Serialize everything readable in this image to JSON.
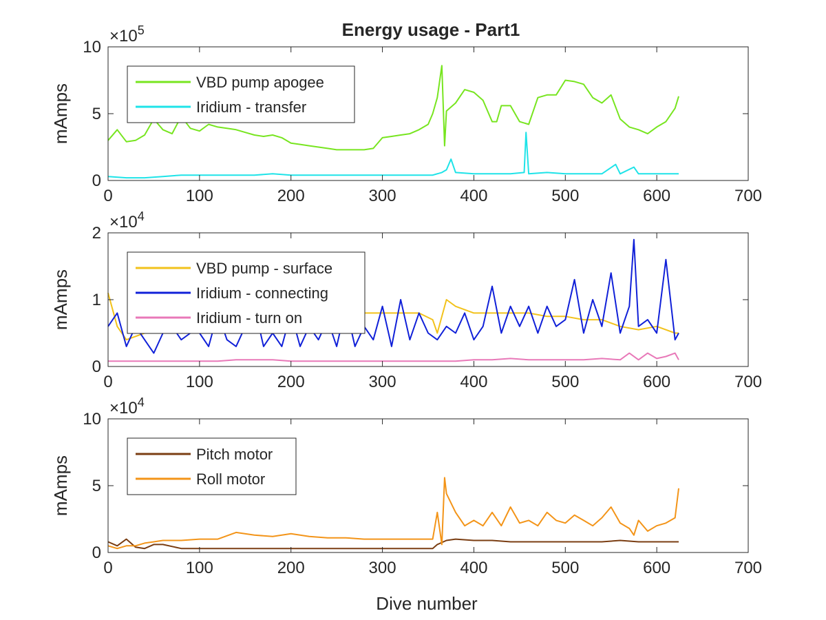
{
  "title": "Energy usage - Part1",
  "xlabel": "Dive number",
  "chart_data": [
    {
      "type": "line",
      "ylabel": "mAmps",
      "exponent_label": "×10^5",
      "exponent_base": "×10",
      "exponent_power": "5",
      "xlim": [
        0,
        700
      ],
      "ylim": [
        0,
        10
      ],
      "xticks": [
        "0",
        "100",
        "200",
        "300",
        "400",
        "500",
        "600",
        "700"
      ],
      "yticks": [
        "0",
        "5",
        "10"
      ],
      "legend_position": "top-left",
      "series": [
        {
          "name": "VBD pump apogee",
          "color": "#77e51f",
          "x": [
            0,
            10,
            20,
            30,
            40,
            50,
            60,
            70,
            80,
            90,
            100,
            110,
            120,
            130,
            140,
            150,
            160,
            170,
            180,
            190,
            200,
            210,
            220,
            230,
            240,
            250,
            260,
            270,
            280,
            290,
            300,
            310,
            320,
            330,
            340,
            350,
            355,
            360,
            365,
            368,
            370,
            380,
            390,
            400,
            410,
            420,
            425,
            430,
            440,
            450,
            460,
            470,
            480,
            490,
            500,
            510,
            520,
            530,
            540,
            550,
            560,
            570,
            580,
            590,
            600,
            610,
            620,
            624
          ],
          "y": [
            3.0,
            3.8,
            2.9,
            3.0,
            3.4,
            4.6,
            3.8,
            3.5,
            4.8,
            3.9,
            3.7,
            4.2,
            4.0,
            3.9,
            3.8,
            3.6,
            3.4,
            3.3,
            3.4,
            3.2,
            2.8,
            2.7,
            2.6,
            2.5,
            2.4,
            2.3,
            2.3,
            2.3,
            2.3,
            2.4,
            3.2,
            3.3,
            3.4,
            3.5,
            3.8,
            4.2,
            5.0,
            6.2,
            8.6,
            2.6,
            5.2,
            5.8,
            6.8,
            6.6,
            6.0,
            4.4,
            4.4,
            5.6,
            5.6,
            4.4,
            4.2,
            6.2,
            6.4,
            6.4,
            7.5,
            7.4,
            7.2,
            6.2,
            5.8,
            6.4,
            4.6,
            4.0,
            3.8,
            3.5,
            4.0,
            4.4,
            5.4,
            6.3
          ]
        },
        {
          "name": "Iridium - transfer",
          "color": "#1ee3e8",
          "x": [
            0,
            20,
            40,
            60,
            80,
            100,
            120,
            140,
            160,
            180,
            200,
            220,
            240,
            260,
            280,
            300,
            320,
            340,
            355,
            365,
            370,
            375,
            380,
            400,
            420,
            440,
            455,
            457,
            460,
            480,
            500,
            520,
            540,
            555,
            560,
            575,
            580,
            600,
            620,
            624
          ],
          "y": [
            0.3,
            0.2,
            0.2,
            0.3,
            0.4,
            0.4,
            0.4,
            0.4,
            0.4,
            0.5,
            0.4,
            0.4,
            0.4,
            0.4,
            0.4,
            0.4,
            0.4,
            0.4,
            0.4,
            0.6,
            0.8,
            1.6,
            0.6,
            0.5,
            0.5,
            0.5,
            0.6,
            3.6,
            0.5,
            0.6,
            0.5,
            0.5,
            0.5,
            1.2,
            0.5,
            1.0,
            0.5,
            0.5,
            0.5,
            0.5
          ]
        }
      ]
    },
    {
      "type": "line",
      "ylabel": "mAmps",
      "exponent_label": "×10^4",
      "exponent_base": "×10",
      "exponent_power": "4",
      "xlim": [
        0,
        700
      ],
      "ylim": [
        0,
        2
      ],
      "xticks": [
        "0",
        "100",
        "200",
        "300",
        "400",
        "500",
        "600",
        "700"
      ],
      "yticks": [
        "0",
        "1",
        "2"
      ],
      "legend_position": "top-left",
      "series": [
        {
          "name": "VBD pump - surface",
          "color": "#f2c21b",
          "x": [
            0,
            10,
            20,
            40,
            60,
            80,
            100,
            120,
            140,
            160,
            180,
            200,
            220,
            240,
            260,
            280,
            300,
            320,
            340,
            355,
            360,
            370,
            380,
            400,
            420,
            440,
            460,
            480,
            500,
            520,
            540,
            560,
            580,
            600,
            620,
            624
          ],
          "y": [
            1.1,
            0.6,
            0.4,
            0.5,
            0.6,
            0.6,
            0.7,
            0.7,
            0.8,
            0.8,
            0.8,
            0.8,
            0.8,
            0.8,
            0.8,
            0.8,
            0.8,
            0.8,
            0.8,
            0.7,
            0.5,
            1.0,
            0.9,
            0.8,
            0.8,
            0.8,
            0.8,
            0.75,
            0.75,
            0.7,
            0.7,
            0.6,
            0.55,
            0.6,
            0.5,
            0.5
          ]
        },
        {
          "name": "Iridium - connecting",
          "color": "#1020d8",
          "x": [
            0,
            10,
            20,
            30,
            40,
            50,
            60,
            70,
            80,
            90,
            100,
            110,
            120,
            130,
            140,
            150,
            160,
            170,
            180,
            190,
            200,
            210,
            220,
            230,
            240,
            250,
            260,
            270,
            280,
            290,
            300,
            310,
            320,
            330,
            340,
            350,
            360,
            370,
            380,
            390,
            400,
            410,
            420,
            430,
            440,
            450,
            460,
            470,
            480,
            490,
            500,
            510,
            520,
            530,
            540,
            550,
            560,
            570,
            575,
            580,
            590,
            600,
            610,
            620,
            624
          ],
          "y": [
            0.6,
            0.8,
            0.3,
            0.6,
            0.4,
            0.2,
            0.5,
            0.6,
            0.4,
            0.5,
            0.5,
            0.3,
            0.8,
            0.4,
            0.3,
            0.6,
            0.9,
            0.3,
            0.5,
            0.3,
            0.8,
            0.3,
            0.6,
            0.4,
            0.7,
            0.3,
            0.9,
            0.3,
            0.6,
            0.4,
            0.9,
            0.3,
            1.0,
            0.4,
            0.8,
            0.5,
            0.4,
            0.6,
            0.5,
            0.8,
            0.4,
            0.6,
            1.2,
            0.5,
            0.9,
            0.6,
            0.9,
            0.5,
            0.9,
            0.6,
            0.7,
            1.3,
            0.5,
            1.0,
            0.6,
            1.4,
            0.5,
            0.9,
            1.9,
            0.6,
            0.7,
            0.5,
            1.6,
            0.4,
            0.5
          ]
        },
        {
          "name": "Iridium - turn on",
          "color": "#e878b8",
          "x": [
            0,
            20,
            40,
            60,
            80,
            100,
            120,
            140,
            160,
            180,
            200,
            220,
            240,
            260,
            280,
            300,
            320,
            340,
            355,
            365,
            380,
            400,
            420,
            440,
            460,
            480,
            500,
            520,
            540,
            560,
            570,
            580,
            590,
            600,
            610,
            620,
            624
          ],
          "y": [
            0.08,
            0.08,
            0.08,
            0.08,
            0.08,
            0.08,
            0.08,
            0.1,
            0.1,
            0.1,
            0.08,
            0.08,
            0.08,
            0.08,
            0.08,
            0.08,
            0.08,
            0.08,
            0.08,
            0.08,
            0.08,
            0.1,
            0.1,
            0.12,
            0.1,
            0.1,
            0.1,
            0.1,
            0.12,
            0.1,
            0.2,
            0.1,
            0.2,
            0.12,
            0.15,
            0.2,
            0.1
          ]
        }
      ]
    },
    {
      "type": "line",
      "ylabel": "mAmps",
      "exponent_label": "×10^4",
      "exponent_base": "×10",
      "exponent_power": "4",
      "xlim": [
        0,
        700
      ],
      "ylim": [
        0,
        10
      ],
      "xticks": [
        "0",
        "100",
        "200",
        "300",
        "400",
        "500",
        "600",
        "700"
      ],
      "yticks": [
        "0",
        "5",
        "10"
      ],
      "legend_position": "top-left",
      "series": [
        {
          "name": "Pitch motor",
          "color": "#7a3d12",
          "x": [
            0,
            10,
            20,
            30,
            40,
            50,
            60,
            80,
            100,
            120,
            140,
            160,
            180,
            200,
            220,
            240,
            260,
            280,
            300,
            320,
            340,
            355,
            360,
            370,
            380,
            400,
            420,
            440,
            460,
            480,
            500,
            520,
            540,
            560,
            580,
            600,
            620,
            624
          ],
          "y": [
            0.8,
            0.5,
            1.0,
            0.4,
            0.3,
            0.6,
            0.6,
            0.3,
            0.3,
            0.3,
            0.3,
            0.3,
            0.3,
            0.3,
            0.3,
            0.3,
            0.3,
            0.3,
            0.3,
            0.3,
            0.3,
            0.3,
            0.6,
            0.9,
            1.0,
            0.9,
            0.9,
            0.8,
            0.8,
            0.8,
            0.8,
            0.8,
            0.8,
            0.9,
            0.8,
            0.8,
            0.8,
            0.8
          ]
        },
        {
          "name": "Roll motor",
          "color": "#f39418",
          "x": [
            0,
            10,
            20,
            30,
            40,
            50,
            60,
            70,
            80,
            100,
            120,
            140,
            160,
            180,
            200,
            220,
            240,
            260,
            280,
            300,
            320,
            340,
            355,
            360,
            365,
            368,
            370,
            380,
            390,
            400,
            410,
            420,
            430,
            440,
            450,
            460,
            470,
            480,
            490,
            500,
            510,
            520,
            530,
            540,
            550,
            560,
            570,
            575,
            580,
            590,
            600,
            610,
            620,
            624
          ],
          "y": [
            0.5,
            0.3,
            0.5,
            0.5,
            0.7,
            0.8,
            0.9,
            0.9,
            0.9,
            1.0,
            1.0,
            1.5,
            1.3,
            1.2,
            1.4,
            1.2,
            1.1,
            1.1,
            1.0,
            1.0,
            1.0,
            1.0,
            1.0,
            3.0,
            0.6,
            5.6,
            4.4,
            3.0,
            2.0,
            2.4,
            2.0,
            3.0,
            2.0,
            3.4,
            2.2,
            2.4,
            2.0,
            3.0,
            2.4,
            2.2,
            2.8,
            2.4,
            2.0,
            2.6,
            3.4,
            2.2,
            1.8,
            1.3,
            2.4,
            1.6,
            2.0,
            2.2,
            2.6,
            4.8
          ]
        }
      ]
    }
  ]
}
